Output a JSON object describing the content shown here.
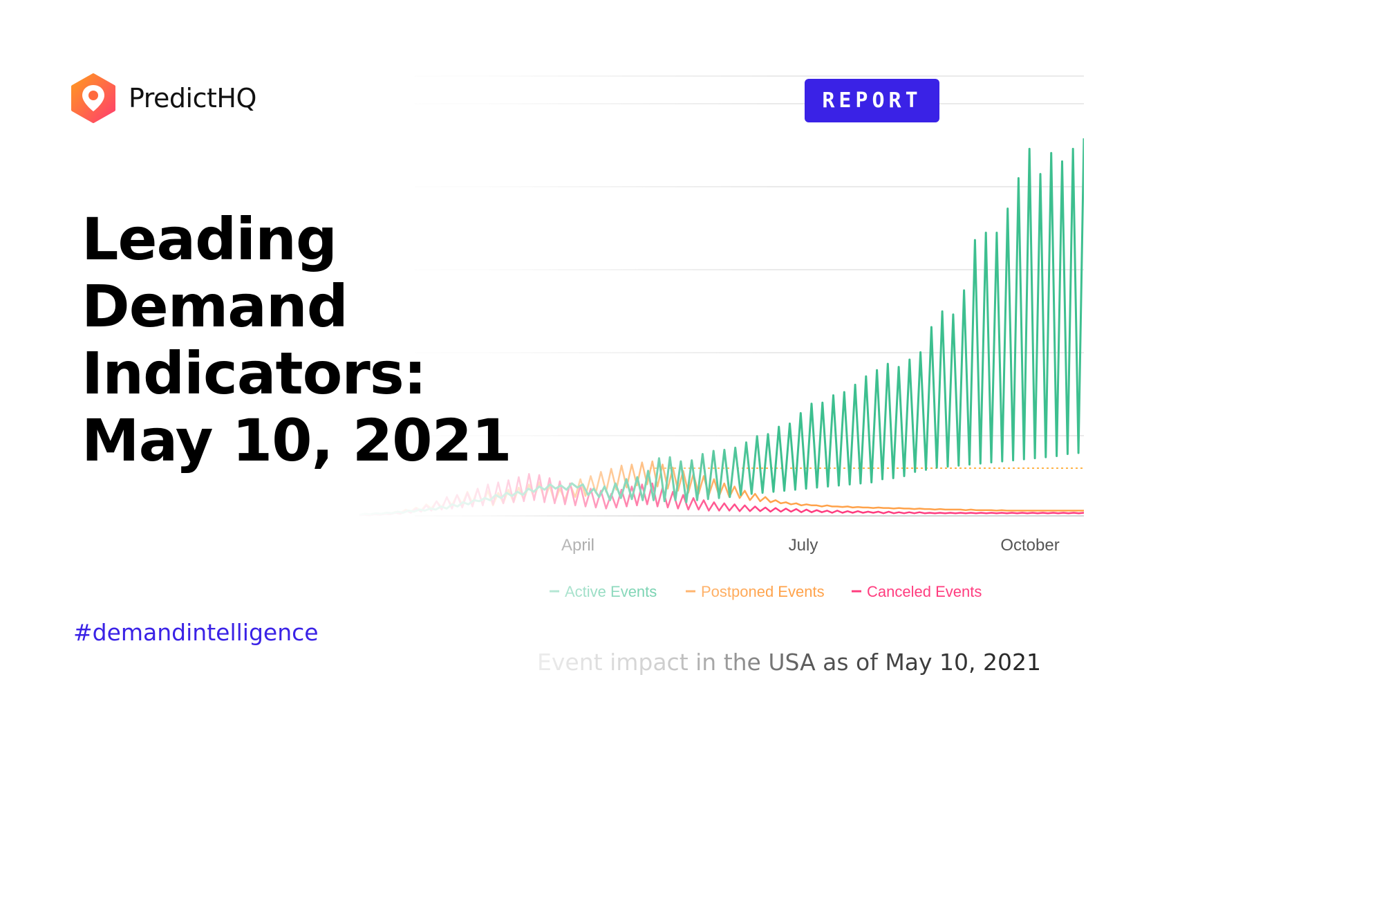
{
  "brand": {
    "name": "PredictHQ",
    "colors": {
      "orange": "#ff7a1f",
      "pink": "#ff3d7f",
      "purple": "#3a22e6"
    }
  },
  "badge": {
    "label": "REPORT"
  },
  "headline": {
    "lines": [
      "Leading",
      "Demand",
      "Indicators:",
      "May 10, 2021"
    ]
  },
  "hashtag": "#demandintelligence",
  "caption": "Event impact in the USA as of May 10, 2021",
  "chart_data": {
    "type": "line",
    "x_ticks": [
      "April",
      "July",
      "October"
    ],
    "grid": true,
    "legend": {
      "placement": "bottom",
      "entries": [
        "Active Events",
        "Postponed Events",
        "Canceled Events"
      ]
    },
    "series": [
      {
        "name": "Active Events",
        "color": "#3dbf8f",
        "values": [
          2,
          4,
          3,
          5,
          4,
          6,
          5,
          8,
          6,
          10,
          8,
          12,
          10,
          14,
          12,
          18,
          14,
          22,
          18,
          26,
          22,
          30,
          28,
          34,
          30,
          40,
          34,
          44,
          38,
          46,
          40,
          52,
          46,
          56,
          50,
          60,
          52,
          58,
          50,
          62,
          54,
          60,
          40,
          52,
          36,
          56,
          30,
          62,
          34,
          70,
          32,
          74,
          30,
          86,
          30,
          110,
          28,
          112,
          30,
          104,
          26,
          106,
          30,
          118,
          32,
          124,
          34,
          126,
          36,
          130,
          40,
          140,
          42,
          152,
          44,
          156,
          46,
          170,
          48,
          176,
          50,
          196,
          52,
          214,
          54,
          216,
          56,
          230,
          58,
          236,
          60,
          250,
          62,
          266,
          64,
          278,
          70,
          290,
          72,
          284,
          76,
          298,
          84,
          312,
          88,
          360,
          92,
          390,
          94,
          384,
          96,
          430,
          98,
          526,
          100,
          540,
          102,
          540,
          104,
          586,
          106,
          644,
          108,
          700,
          110,
          652,
          112,
          692,
          114,
          676,
          118,
          700,
          120,
          720
        ],
        "note": "approximate magnitude relative to peak"
      },
      {
        "name": "Postponed Events",
        "color": "#ffa24a",
        "values": [
          2,
          3,
          2,
          4,
          3,
          6,
          4,
          8,
          6,
          12,
          8,
          16,
          10,
          22,
          14,
          28,
          16,
          34,
          20,
          40,
          22,
          46,
          24,
          52,
          22,
          48,
          20,
          44,
          24,
          50,
          26,
          54,
          30,
          60,
          34,
          64,
          30,
          58,
          26,
          52,
          30,
          60,
          36,
          70,
          38,
          76,
          44,
          84,
          46,
          90,
          50,
          96,
          54,
          98,
          58,
          102,
          60,
          104,
          56,
          98,
          52,
          92,
          48,
          86,
          44,
          80,
          42,
          76,
          40,
          70,
          38,
          62,
          36,
          56,
          34,
          48,
          30,
          42,
          28,
          36,
          26,
          30,
          24,
          26,
          22,
          24,
          20,
          22,
          20,
          20,
          18,
          20,
          18,
          18,
          17,
          18,
          16,
          17,
          16,
          16,
          15,
          16,
          15,
          15,
          14,
          15,
          14,
          14,
          13,
          14,
          13,
          13,
          12,
          13,
          12,
          12,
          12,
          12,
          11,
          12,
          11,
          11,
          11,
          11,
          10,
          11,
          10,
          10,
          10,
          10,
          10,
          10,
          10,
          10,
          10,
          10,
          10,
          10,
          10,
          10,
          10,
          10
        ],
        "note": "approximate magnitude relative to peak"
      },
      {
        "name": "Canceled Events",
        "color": "#ff3d7f",
        "values": [
          1,
          2,
          1,
          3,
          2,
          4,
          3,
          6,
          4,
          10,
          6,
          14,
          8,
          20,
          10,
          28,
          12,
          36,
          14,
          40,
          16,
          44,
          18,
          52,
          20,
          60,
          22,
          64,
          24,
          68,
          26,
          74,
          28,
          80,
          30,
          78,
          26,
          72,
          24,
          66,
          22,
          62,
          20,
          58,
          18,
          52,
          16,
          48,
          14,
          42,
          16,
          50,
          18,
          56,
          20,
          60,
          22,
          62,
          18,
          54,
          16,
          46,
          14,
          40,
          12,
          34,
          12,
          30,
          10,
          26,
          10,
          24,
          10,
          22,
          9,
          20,
          9,
          18,
          9,
          16,
          8,
          15,
          8,
          14,
          8,
          13,
          7,
          12,
          7,
          11,
          7,
          10,
          6,
          10,
          6,
          9,
          6,
          9,
          6,
          8,
          6,
          8,
          5,
          8,
          5,
          7,
          5,
          7,
          5,
          7,
          5,
          6,
          5,
          6,
          5,
          6,
          5,
          6,
          5,
          6,
          5,
          6,
          5,
          6,
          5,
          6,
          5,
          6,
          5,
          6,
          5,
          6,
          5,
          6,
          5,
          6,
          5,
          6,
          5,
          6,
          5,
          6
        ],
        "note": "approximate magnitude relative to peak"
      }
    ]
  }
}
